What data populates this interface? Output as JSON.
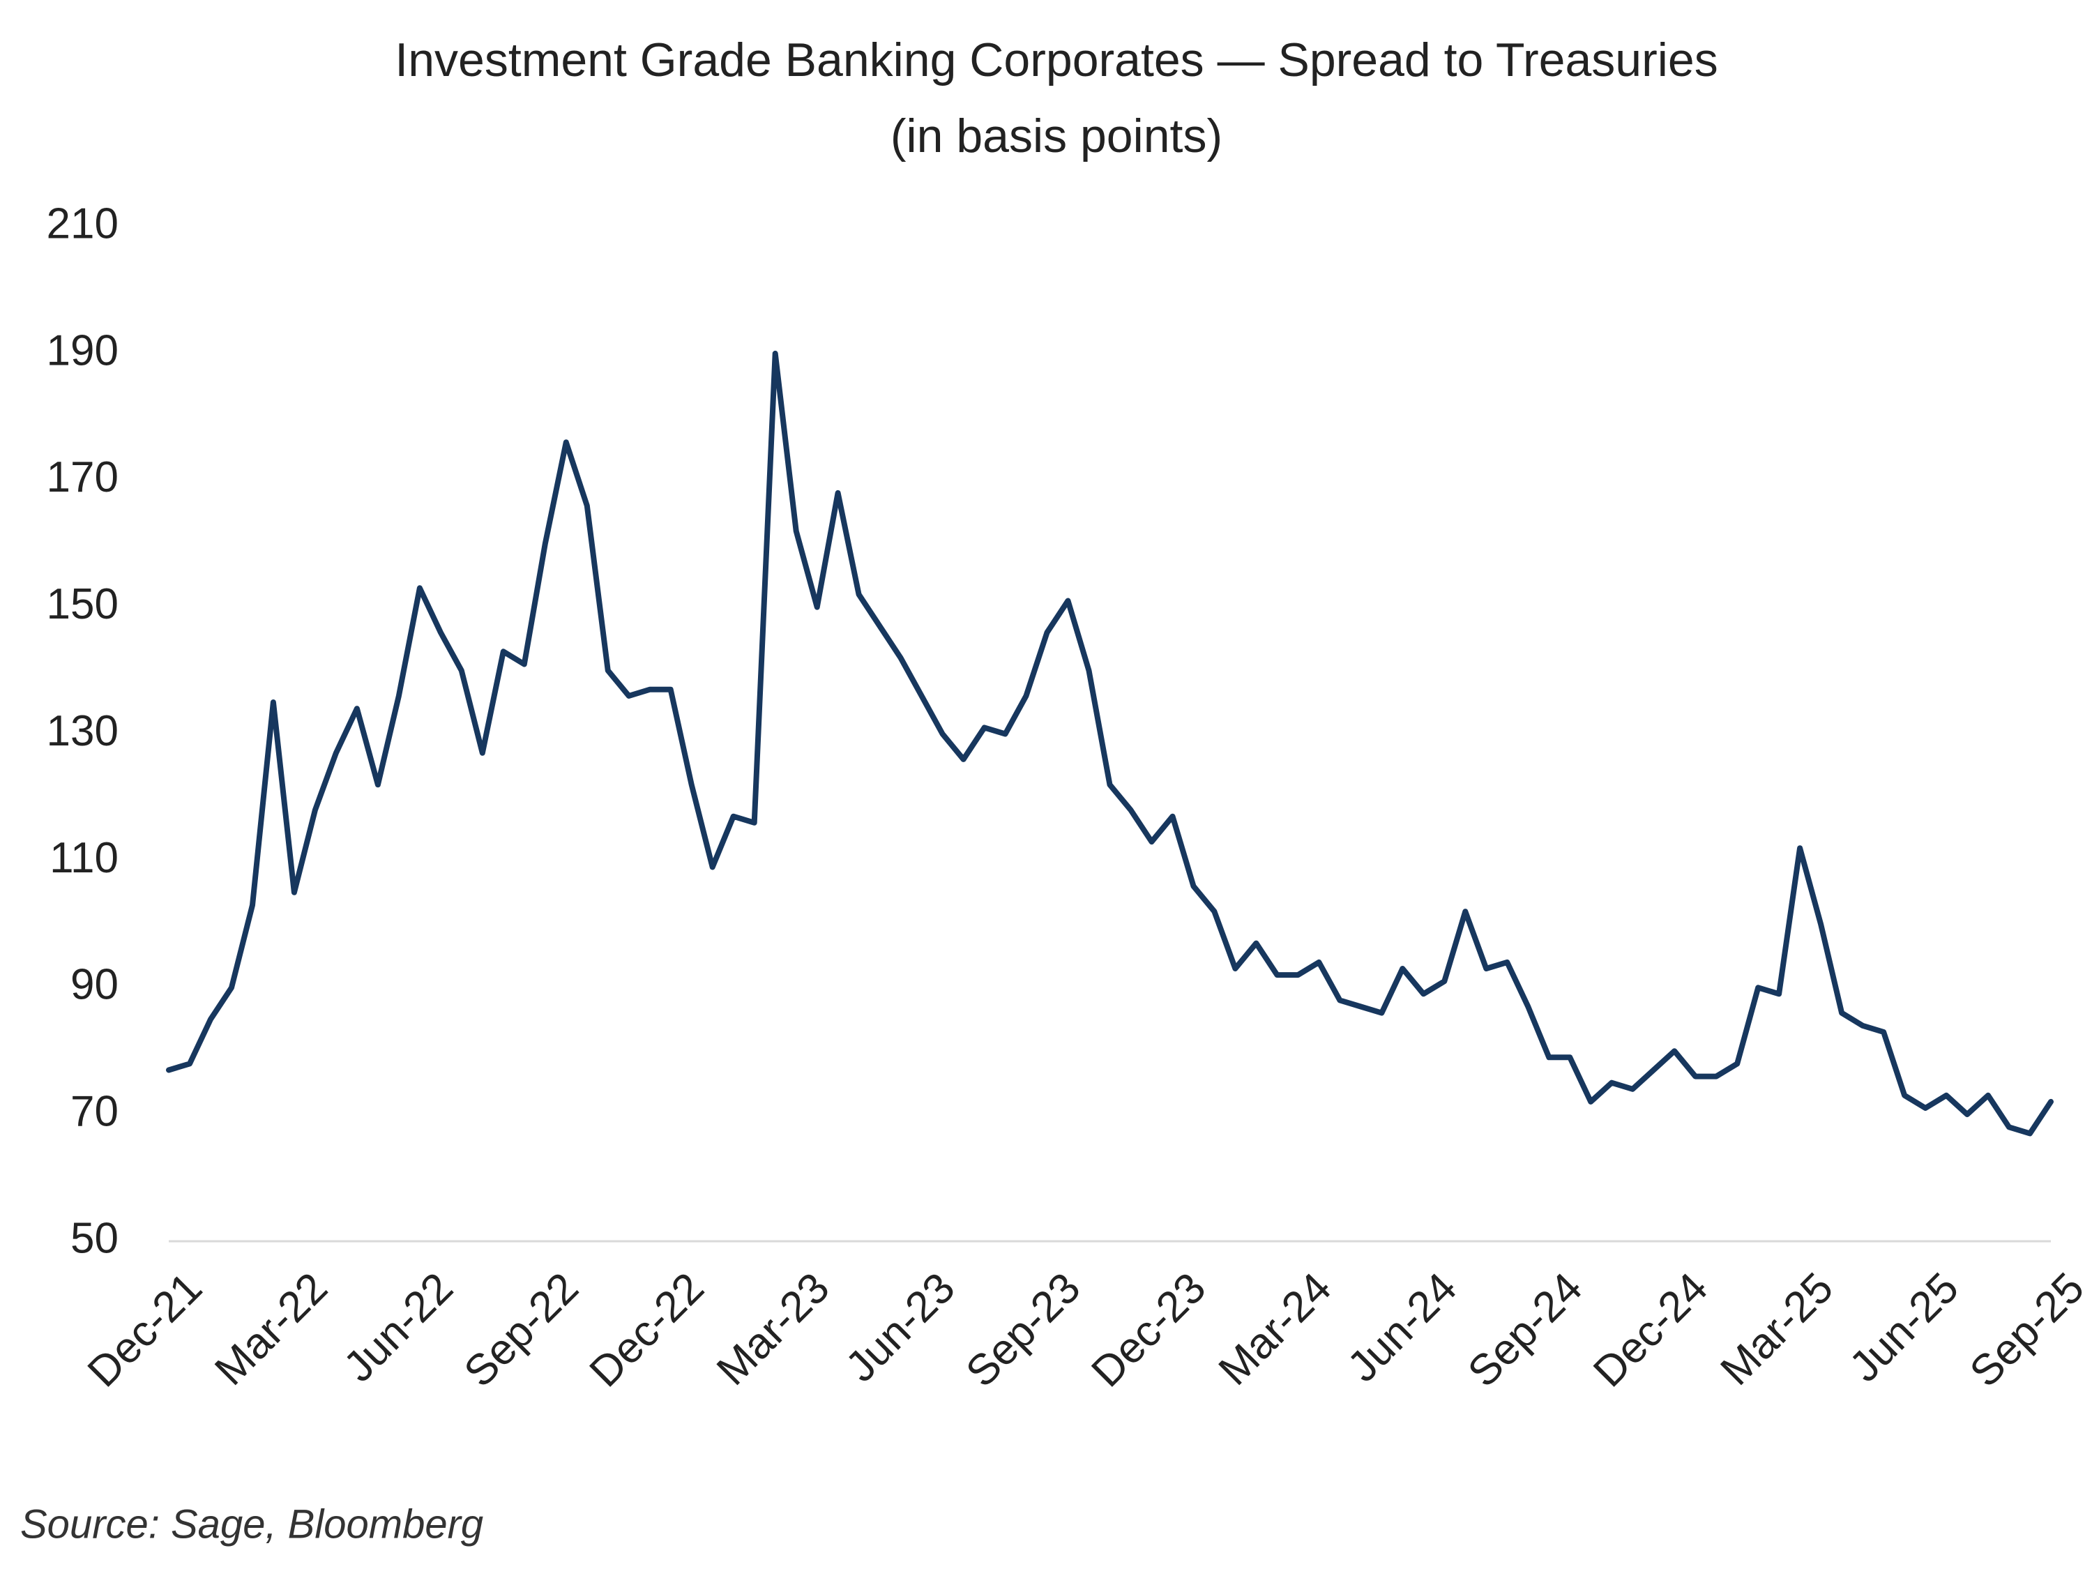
{
  "chart_data": {
    "type": "line",
    "title": "Investment Grade Banking Corporates — Spread to Treasuries",
    "subtitle": "(in basis points)",
    "source": "Source: Sage, Bloomberg",
    "categories": [
      "Dec-21",
      null,
      null,
      null,
      null,
      null,
      "Mar-22",
      null,
      null,
      null,
      null,
      null,
      "Jun-22",
      null,
      null,
      null,
      null,
      null,
      "Sep-22",
      null,
      null,
      null,
      null,
      null,
      "Dec-22",
      null,
      null,
      null,
      null,
      null,
      "Mar-23",
      null,
      null,
      null,
      null,
      null,
      "Jun-23",
      null,
      null,
      null,
      null,
      null,
      "Sep-23",
      null,
      null,
      null,
      null,
      null,
      "Dec-23",
      null,
      null,
      null,
      null,
      null,
      "Mar-24",
      null,
      null,
      null,
      null,
      null,
      "Jun-24",
      null,
      null,
      null,
      null,
      null,
      "Sep-24",
      null,
      null,
      null,
      null,
      null,
      "Dec-24",
      null,
      null,
      null,
      null,
      null,
      "Mar-25",
      null,
      null,
      null,
      null,
      null,
      "Jun-25",
      null,
      null,
      null,
      null,
      null,
      "Sep-25"
    ],
    "series": [
      {
        "name": "Spread to Treasuries",
        "color": "#17375e",
        "values": [
          77,
          78,
          85,
          90,
          103,
          135,
          105,
          118,
          127,
          134,
          122,
          136,
          153,
          146,
          140,
          127,
          143,
          141,
          160,
          176,
          166,
          140,
          136,
          137,
          137,
          122,
          109,
          117,
          116,
          190,
          162,
          150,
          168,
          152,
          147,
          142,
          136,
          130,
          126,
          131,
          130,
          136,
          146,
          151,
          140,
          122,
          118,
          113,
          117,
          106,
          102,
          93,
          97,
          92,
          92,
          94,
          88,
          87,
          86,
          93,
          89,
          91,
          102,
          93,
          94,
          87,
          79,
          79,
          72,
          75,
          74,
          77,
          80,
          76,
          76,
          78,
          90,
          89,
          112,
          100,
          86,
          84,
          83,
          73,
          71,
          73,
          70,
          73,
          68,
          67,
          72
        ]
      }
    ],
    "ylim": [
      50,
      210
    ],
    "yticks": [
      50,
      70,
      90,
      110,
      130,
      150,
      170,
      190,
      210
    ],
    "grid": false
  }
}
